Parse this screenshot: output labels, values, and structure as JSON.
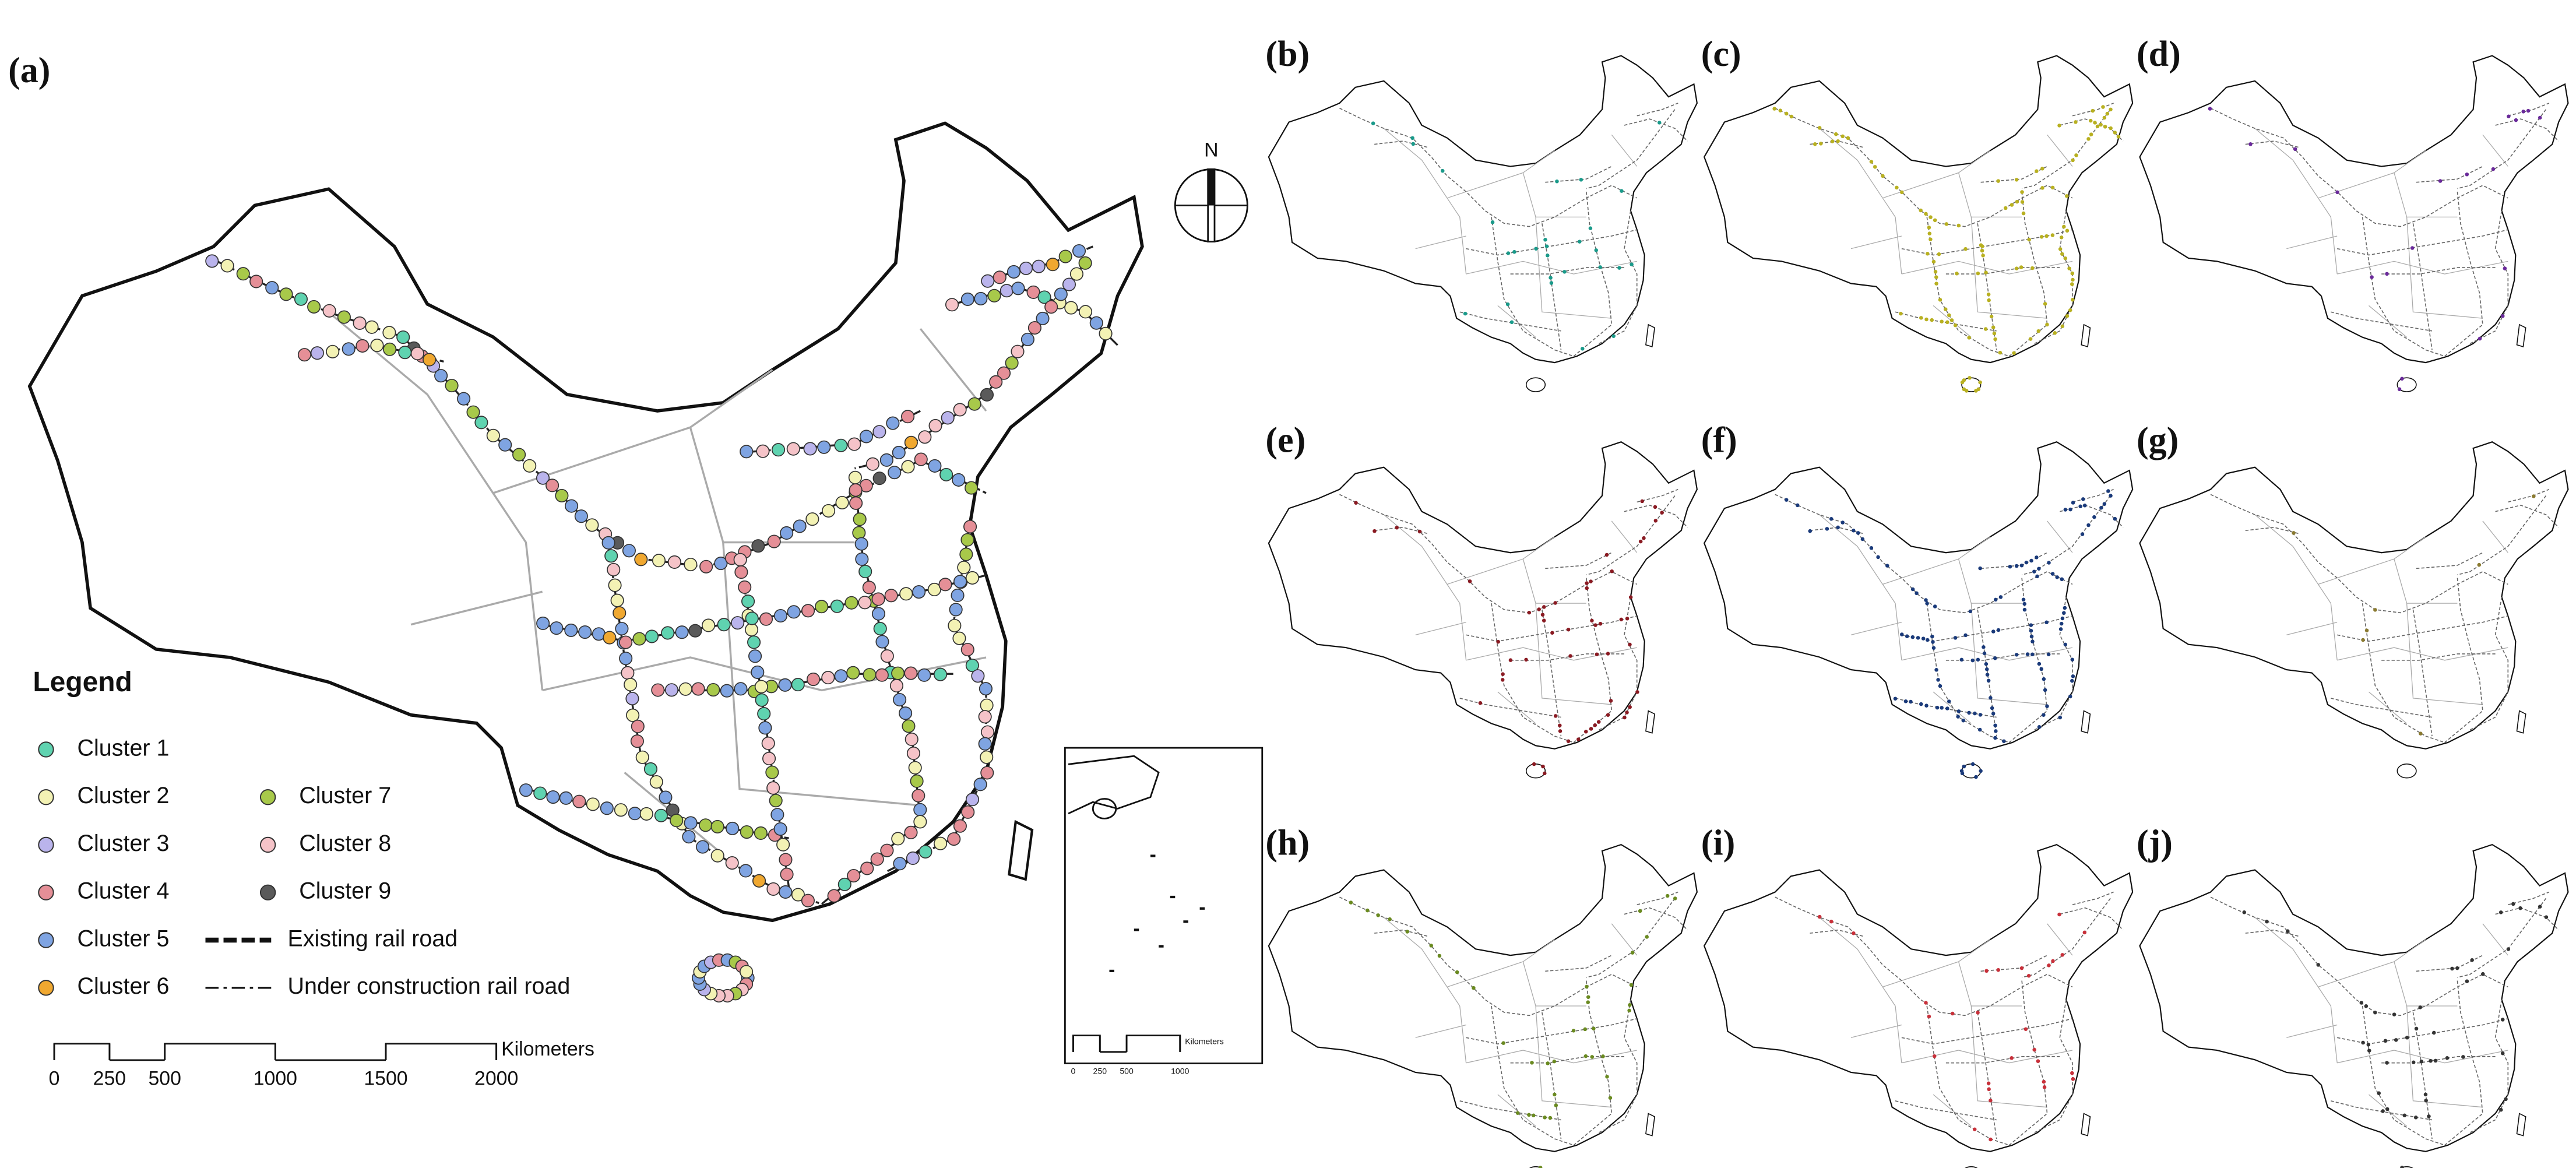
{
  "panel_labels": [
    "(a)",
    "(b)",
    "(c)",
    "(d)",
    "(e)",
    "(f)",
    "(g)",
    "(h)",
    "(i)",
    "(j)"
  ],
  "north": "N",
  "legend": {
    "title": "Legend",
    "clusters": [
      "Cluster 1",
      "Cluster 2",
      "Cluster 3",
      "Cluster 4",
      "Cluster 5",
      "Cluster 6",
      "Cluster 7",
      "Cluster 8",
      "Cluster 9"
    ],
    "cluster_colors": [
      "#5fd3b0",
      "#f3f2b4",
      "#bab4ec",
      "#e58f97",
      "#7fa4e2",
      "#f0a830",
      "#a8c94a",
      "#f5c3c8",
      "#5a5a5a"
    ],
    "lines": [
      "Existing rail road",
      "Under construction rail road"
    ]
  },
  "scale_bar": {
    "ticks": [
      0,
      250,
      500,
      1000,
      1500,
      2000
    ],
    "unit": "Kilometers"
  },
  "inset_scale_bar": {
    "ticks": [
      0,
      250,
      500,
      1000
    ],
    "unit": "Kilometers"
  }
}
